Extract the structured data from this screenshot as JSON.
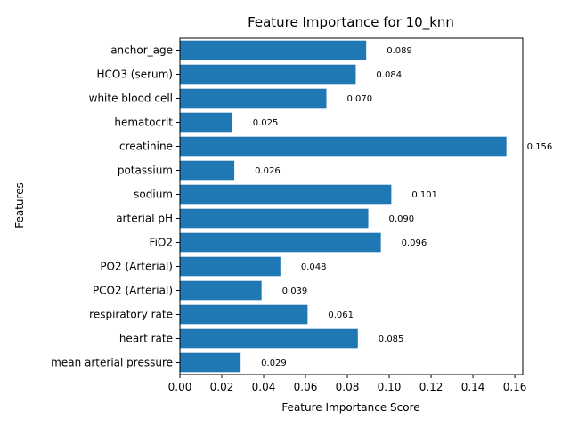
{
  "chart_data": {
    "type": "bar",
    "orientation": "horizontal",
    "title": "Feature Importance for 10_knn",
    "xlabel": "Feature Importance Score",
    "ylabel": "Features",
    "categories": [
      "mean arterial pressure",
      "heart rate",
      "respiratory rate",
      "PCO2 (Arterial)",
      "PO2 (Arterial)",
      "FiO2",
      "arterial pH",
      "sodium",
      "potassium",
      "creatinine",
      "hematocrit",
      "white blood cell",
      "HCO3 (serum)",
      "anchor_age"
    ],
    "values": [
      0.029,
      0.085,
      0.061,
      0.039,
      0.048,
      0.096,
      0.09,
      0.101,
      0.026,
      0.156,
      0.025,
      0.07,
      0.084,
      0.089
    ],
    "value_labels": [
      "0.029",
      "0.085",
      "0.061",
      "0.039",
      "0.048",
      "0.096",
      "0.090",
      "0.101",
      "0.026",
      "0.156",
      "0.025",
      "0.070",
      "0.084",
      "0.089"
    ],
    "xlim": [
      0,
      0.1638
    ],
    "xticks": [
      0,
      0.02,
      0.04,
      0.06,
      0.08,
      0.1,
      0.12,
      0.14,
      0.16
    ],
    "xtick_labels": [
      "0.00",
      "0.02",
      "0.04",
      "0.06",
      "0.08",
      "0.10",
      "0.12",
      "0.14",
      "0.16"
    ],
    "bar_color": "#1f77b4",
    "grid": false,
    "legend": "none"
  }
}
